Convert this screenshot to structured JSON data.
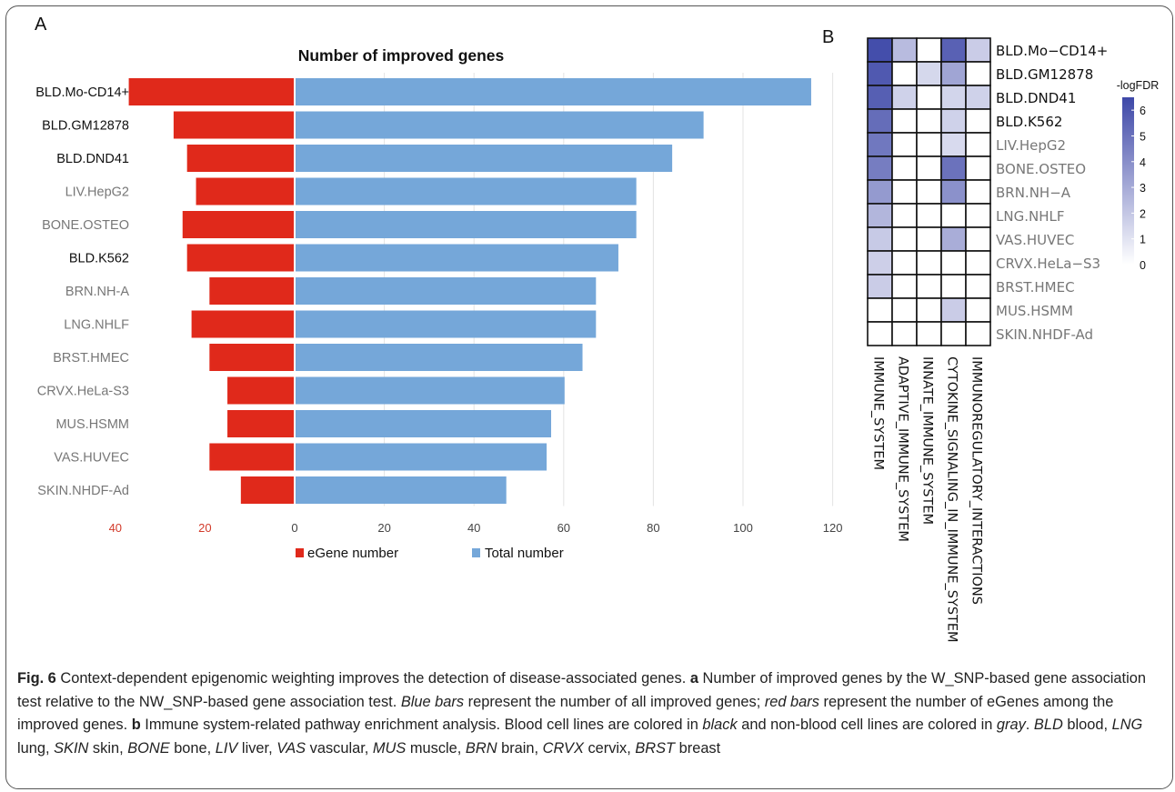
{
  "figure": {
    "panel_a_letter": "A",
    "panel_b_letter": "B"
  },
  "chart_data": [
    {
      "type": "bar",
      "title": "Number of improved genes",
      "orientation": "horizontal",
      "categories": [
        "BLD.Mo-CD14+",
        "BLD.GM12878",
        "BLD.DND41",
        "LIV.HepG2",
        "BONE.OSTEO",
        "BLD.K562",
        "BRN.NH-A",
        "LNG.NHLF",
        "BRST.HMEC",
        "CRVX.HeLa-S3",
        "MUS.HSMM",
        "VAS.HUVEC",
        "SKIN.NHDF-Ad"
      ],
      "category_colors": [
        "#111111",
        "#111111",
        "#111111",
        "#777777",
        "#777777",
        "#111111",
        "#777777",
        "#777777",
        "#777777",
        "#777777",
        "#777777",
        "#777777",
        "#777777"
      ],
      "series": [
        {
          "name": "eGene number",
          "color": "#e0291b",
          "direction": "left",
          "values": [
            37,
            27,
            24,
            22,
            25,
            24,
            19,
            23,
            19,
            15,
            15,
            19,
            12
          ]
        },
        {
          "name": "Total number",
          "color": "#75a7d9",
          "direction": "right",
          "values": [
            115,
            91,
            84,
            76,
            76,
            72,
            67,
            67,
            64,
            60,
            57,
            56,
            47
          ]
        }
      ],
      "x_ticks_left": [
        "40",
        "20"
      ],
      "x_ticks_right": [
        "0",
        "20",
        "40",
        "60",
        "80",
        "100",
        "120"
      ],
      "xlim_left": [
        40,
        0
      ],
      "xlim_right": [
        0,
        120
      ],
      "grid": "vertical",
      "legend_position": "bottom"
    },
    {
      "type": "heatmap",
      "rows": [
        "BLD.Mo−CD14+",
        "BLD.GM12878",
        "BLD.DND41",
        "BLD.K562",
        "LIV.HepG2",
        "BONE.OSTEO",
        "BRN.NH−A",
        "LNG.NHLF",
        "VAS.HUVEC",
        "CRVX.HeLa−S3",
        "BRST.HMEC",
        "MUS.HSMM",
        "SKIN.NHDF-Ad"
      ],
      "row_colors": [
        "#111111",
        "#111111",
        "#111111",
        "#111111",
        "#777777",
        "#777777",
        "#777777",
        "#777777",
        "#777777",
        "#777777",
        "#777777",
        "#777777",
        "#777777"
      ],
      "columns": [
        "IMMUNE_SYSTEM",
        "ADAPTIVE_IMMUNE_SYSTEM",
        "INNATE_IMMUNE_SYSTEM",
        "CYTOKINE_SIGNALING_IN_IMMUNE_SYSTEM",
        "IMMUNOREGULATORY_INTERACTIONS"
      ],
      "values": [
        [
          6.3,
          2.4,
          0,
          5.6,
          1.8
        ],
        [
          5.9,
          0,
          1.4,
          3.2,
          0
        ],
        [
          5.7,
          1.6,
          0,
          1.5,
          1.6
        ],
        [
          5.2,
          0,
          0,
          1.6,
          0
        ],
        [
          4.8,
          0,
          0,
          1.3,
          0
        ],
        [
          4.6,
          0,
          0,
          5.0,
          0
        ],
        [
          3.6,
          0,
          0,
          3.9,
          0
        ],
        [
          2.6,
          0,
          0,
          0,
          0
        ],
        [
          1.9,
          0,
          0,
          2.9,
          0
        ],
        [
          1.7,
          0,
          0,
          0,
          0
        ],
        [
          1.8,
          0,
          0,
          0,
          0
        ],
        [
          0,
          0,
          0,
          1.8,
          0
        ],
        [
          0,
          0,
          0,
          0,
          0
        ]
      ],
      "colorbar": {
        "label": "-logFDR",
        "ticks": [
          "6",
          "5",
          "4",
          "3",
          "2",
          "1",
          "0"
        ],
        "range": [
          0,
          6.5
        ],
        "color_low": "#ffffff",
        "color_high": "#3e48a8"
      }
    }
  ],
  "caption": {
    "fig_label": "Fig. 6",
    "s1": " Context-dependent epigenomic weighting improves the detection of disease-associated genes. ",
    "a_label": "a",
    "s2": " Number of improved genes by the W_SNP-based gene association test relative to the NW_SNP-based gene association test. ",
    "blue_bars": "Blue bars",
    "s3": " represent the number of all improved genes; ",
    "red_bars": "red bars",
    "s4": " represent the number of eGenes among the improved genes. ",
    "b_label": "b",
    "s5": " Immune system-related pathway enrichment analysis. Blood cell lines are colored in ",
    "black": "black",
    "s6": " and non-blood cell lines are colored in ",
    "gray": "gray",
    "s7": ". ",
    "bld": "BLD",
    "s8": " blood, ",
    "lng": "LNG",
    "s9": " lung, ",
    "skin": "SKIN",
    "s10": " skin, ",
    "bone": "BONE",
    "s11": " bone, ",
    "liv": "LIV",
    "s12": " liver, ",
    "vas": "VAS",
    "s13": " vascular, ",
    "mus": "MUS",
    "s14": " muscle, ",
    "brn": "BRN",
    "s15": " brain, ",
    "crvx": "CRVX",
    "s16": " cervix, ",
    "brst": "BRST",
    "s17": " breast"
  }
}
